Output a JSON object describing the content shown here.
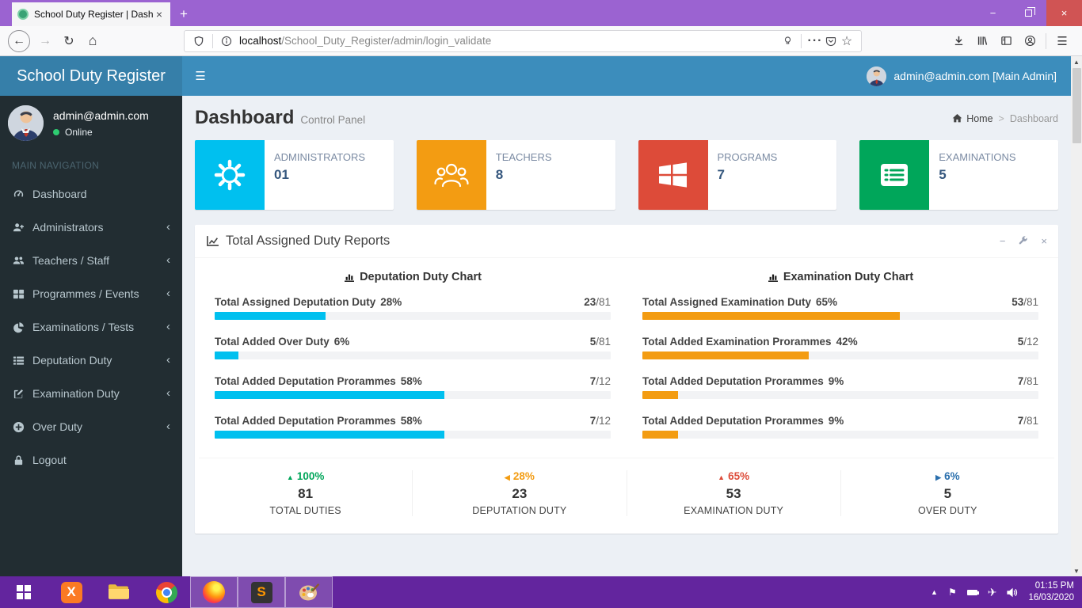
{
  "browser": {
    "tab_title": "School Duty Register | Dashboa",
    "tab_close": "×",
    "new_tab": "+",
    "url_host": "localhost",
    "url_path": "/School_Duty_Register/admin/login_validate",
    "ellipsis": "···",
    "star": "☆",
    "back": "←",
    "forward": "→",
    "reload": "↻",
    "home": "⌂",
    "menu": "☰",
    "win_min": "−",
    "win_close": "×"
  },
  "app": {
    "brand": "School Duty Register",
    "burger": "☰",
    "user": {
      "email": "admin@admin.com",
      "status": "Online"
    },
    "topnav": {
      "user_label": "admin@admin.com [Main Admin]"
    },
    "nav_section_label": "MAIN NAVIGATION",
    "nav": [
      {
        "label": "Dashboard",
        "arrow": ""
      },
      {
        "label": "Administrators",
        "arrow": "‹"
      },
      {
        "label": "Teachers / Staff",
        "arrow": "‹"
      },
      {
        "label": "Programmes / Events",
        "arrow": "‹"
      },
      {
        "label": "Examinations / Tests",
        "arrow": "‹"
      },
      {
        "label": "Deputation Duty",
        "arrow": "‹"
      },
      {
        "label": "Examination Duty",
        "arrow": "‹"
      },
      {
        "label": "Over Duty",
        "arrow": "‹"
      },
      {
        "label": "Logout",
        "arrow": ""
      }
    ],
    "page": {
      "title": "Dashboard",
      "subtitle": "Control Panel"
    },
    "breadcrumb": {
      "home": "Home",
      "sep": ">",
      "current": "Dashboard"
    },
    "info_boxes": [
      {
        "label": "ADMINISTRATORS",
        "value": "01",
        "color": "#00c0ef",
        "icon": "gear-icon"
      },
      {
        "label": "TEACHERS",
        "value": "8",
        "color": "#f39c12",
        "icon": "teachers-icon"
      },
      {
        "label": "PROGRAMS",
        "value": "7",
        "color": "#dd4b39",
        "icon": "windows-icon"
      },
      {
        "label": "EXAMINATIONS",
        "value": "5",
        "color": "#00a65a",
        "icon": "list-icon"
      }
    ],
    "report_panel": {
      "title": "Total Assigned Duty Reports",
      "tools": {
        "collapse": "−",
        "close": "×"
      },
      "charts": [
        {
          "title": "Deputation Duty Chart",
          "bar_color": "#00c0ef",
          "rows": [
            {
              "label": "Total Assigned Deputation Duty",
              "pct": "28%",
              "pct_val": 28,
              "num": "23",
              "den": "/81"
            },
            {
              "label": "Total Added Over Duty",
              "pct": "6%",
              "pct_val": 6,
              "num": "5",
              "den": "/81"
            },
            {
              "label": "Total Added Deputation Prorammes",
              "pct": "58%",
              "pct_val": 58,
              "num": "7",
              "den": "/12"
            },
            {
              "label": "Total Added Deputation Prorammes",
              "pct": "58%",
              "pct_val": 58,
              "num": "7",
              "den": "/12"
            }
          ]
        },
        {
          "title": "Examination Duty Chart",
          "bar_color": "#f39c12",
          "rows": [
            {
              "label": "Total Assigned Examination Duty",
              "pct": "65%",
              "pct_val": 65,
              "num": "53",
              "den": "/81"
            },
            {
              "label": "Total Added Examination Prorammes",
              "pct": "42%",
              "pct_val": 42,
              "num": "5",
              "den": "/12"
            },
            {
              "label": "Total Added Deputation Prorammes",
              "pct": "9%",
              "pct_val": 9,
              "num": "7",
              "den": "/81"
            },
            {
              "label": "Total Added Deputation Prorammes",
              "pct": "9%",
              "pct_val": 9,
              "num": "7",
              "den": "/81"
            }
          ]
        }
      ],
      "footer_stats": [
        {
          "caret": "▲",
          "pct": "100%",
          "value": "81",
          "label": "TOTAL DUTIES",
          "color": "#00a65a"
        },
        {
          "caret": "◀",
          "pct": "28%",
          "value": "23",
          "label": "DEPUTATION DUTY",
          "color": "#f39c12"
        },
        {
          "caret": "▲",
          "pct": "65%",
          "value": "53",
          "label": "EXAMINATION DUTY",
          "color": "#dd4b39"
        },
        {
          "caret": "▶",
          "pct": "6%",
          "value": "5",
          "label": "OVER DUTY",
          "color": "#2a6fad"
        }
      ]
    }
  },
  "taskbar": {
    "clock": {
      "time": "01:15 PM",
      "date": "16/03/2020"
    }
  },
  "colors": {
    "titlebar_purple": "#9b63d1",
    "taskbar_purple": "#63259e",
    "header_blue": "#3c8dbc",
    "sidebar_dark": "#222d32",
    "content_bg": "#ecf0f5",
    "aqua": "#00c0ef",
    "orange": "#f39c12",
    "red": "#dd4b39",
    "green": "#00a65a"
  }
}
